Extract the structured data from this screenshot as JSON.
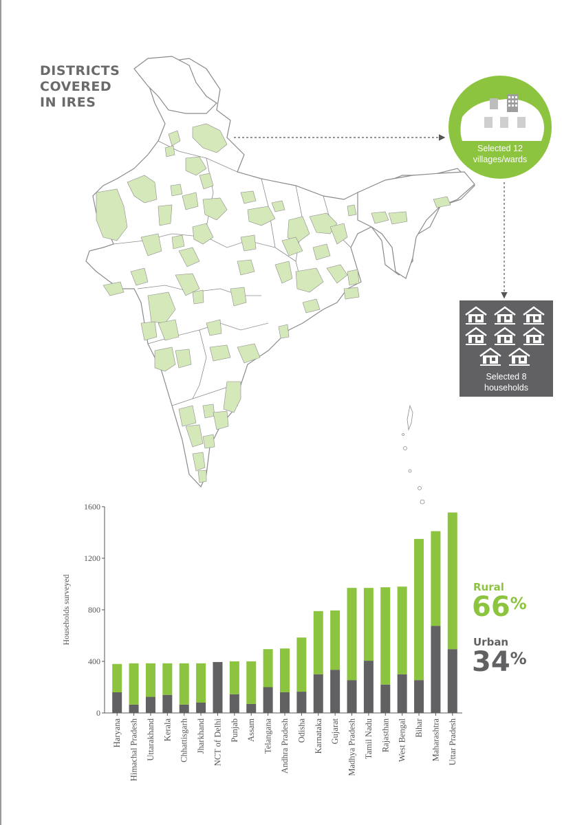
{
  "title": {
    "line1": "DISTRICTS",
    "line2": "COVERED",
    "line3": "IN IRES"
  },
  "village_callout": {
    "line1": "Selected 12",
    "line2": "villages/wards"
  },
  "household_callout": {
    "line1": "Selected 8",
    "line2": "households"
  },
  "legend": {
    "rural_label": "Rural",
    "rural_pct": "66",
    "urban_label": "Urban",
    "urban_pct": "34",
    "pct_symbol": "%"
  },
  "colors": {
    "rural": "#8cc43f",
    "urban": "#616164",
    "map_fill": "#d5e8b9",
    "map_stroke": "#8a8a8a"
  },
  "chart_data": {
    "type": "bar",
    "stacked": true,
    "ylabel": "Households surveyed",
    "xlabel": "",
    "ylim": [
      0,
      1600
    ],
    "yticks": [
      0,
      400,
      800,
      1200,
      1600
    ],
    "categories": [
      "Haryana",
      "Himachal Pradesh",
      "Uttarakhand",
      "Kerala",
      "Chhattisgarh",
      "Jharkhand",
      "NCT of Delhi",
      "Punjab",
      "Assam",
      "Telangana",
      "Andhra Pradesh",
      "Odisha",
      "Karnataka",
      "Gujarat",
      "Madhya Pradesh",
      "Tamil Nadu",
      "Rajasthan",
      "West Bengal",
      "Bihar",
      "Maharashtra",
      "Uttar Pradesh"
    ],
    "series": [
      {
        "name": "Urban",
        "values": [
          160,
          65,
          125,
          140,
          65,
          80,
          395,
          145,
          70,
          200,
          160,
          165,
          300,
          335,
          255,
          405,
          220,
          300,
          255,
          675,
          495
        ]
      },
      {
        "name": "Rural",
        "values": [
          220,
          320,
          260,
          245,
          320,
          305,
          0,
          255,
          330,
          295,
          340,
          420,
          490,
          460,
          715,
          565,
          755,
          680,
          1095,
          735,
          1060
        ]
      }
    ],
    "grid": false,
    "legend_position": "right"
  }
}
